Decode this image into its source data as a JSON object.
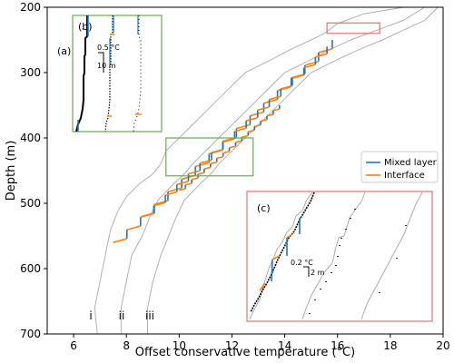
{
  "chart_data": {
    "type": "line",
    "xlabel": "Offset conservative temperature (°C)",
    "ylabel": "Depth (m)",
    "xlim": [
      5,
      20
    ],
    "ylim": [
      700,
      200
    ],
    "xticks": [
      "6",
      "8",
      "10",
      "12",
      "14",
      "16",
      "18",
      "20"
    ],
    "yticks": [
      "200",
      "300",
      "400",
      "500",
      "600",
      "700"
    ],
    "legend": {
      "placement": "right",
      "entries": [
        {
          "name": "Mixed layer",
          "color": "#1f77b4"
        },
        {
          "name": "Interface",
          "color": "#ff7f0e"
        }
      ]
    },
    "profile_labels": [
      "i",
      "ii",
      "iii"
    ],
    "profiles": [
      {
        "label": "i",
        "points": [
          [
            6.9,
            700
          ],
          [
            6.8,
            660
          ],
          [
            7.0,
            620
          ],
          [
            7.2,
            580
          ],
          [
            7.4,
            540
          ],
          [
            7.7,
            510
          ],
          [
            8.0,
            490
          ],
          [
            8.5,
            470
          ],
          [
            9.0,
            455
          ],
          [
            9.3,
            440
          ],
          [
            9.5,
            420
          ],
          [
            10.0,
            400
          ],
          [
            10.5,
            380
          ],
          [
            11.0,
            360
          ],
          [
            11.5,
            340
          ],
          [
            12.0,
            320
          ],
          [
            12.5,
            300
          ],
          [
            13.0,
            290
          ],
          [
            13.5,
            280
          ],
          [
            14.2,
            265
          ],
          [
            15.0,
            250
          ],
          [
            15.5,
            240
          ],
          [
            16.0,
            225
          ],
          [
            17.0,
            210
          ],
          [
            18.5,
            200
          ]
        ]
      },
      {
        "label": "ii",
        "points": [
          [
            7.8,
            700
          ],
          [
            7.8,
            660
          ],
          [
            8.0,
            620
          ],
          [
            8.2,
            580
          ],
          [
            8.6,
            550
          ],
          [
            8.9,
            520
          ],
          [
            9.2,
            495
          ],
          [
            9.8,
            470
          ],
          [
            10.2,
            455
          ],
          [
            10.5,
            440
          ],
          [
            11.0,
            420
          ],
          [
            11.5,
            400
          ],
          [
            12.0,
            380
          ],
          [
            12.5,
            360
          ],
          [
            13.0,
            340
          ],
          [
            13.5,
            320
          ],
          [
            14.0,
            300
          ],
          [
            14.5,
            290
          ],
          [
            15.0,
            280
          ],
          [
            15.7,
            265
          ],
          [
            16.5,
            250
          ],
          [
            17.5,
            235
          ],
          [
            18.5,
            220
          ],
          [
            19.3,
            200
          ]
        ]
      },
      {
        "label": "iii",
        "points": [
          [
            8.8,
            700
          ],
          [
            8.8,
            660
          ],
          [
            9.0,
            620
          ],
          [
            9.3,
            580
          ],
          [
            9.6,
            550
          ],
          [
            9.9,
            520
          ],
          [
            10.2,
            495
          ],
          [
            10.8,
            470
          ],
          [
            11.2,
            455
          ],
          [
            11.5,
            440
          ],
          [
            12.0,
            420
          ],
          [
            12.5,
            400
          ],
          [
            13.0,
            380
          ],
          [
            13.5,
            360
          ],
          [
            14.0,
            340
          ],
          [
            14.5,
            320
          ],
          [
            15.0,
            300
          ],
          [
            15.5,
            290
          ],
          [
            16.0,
            280
          ],
          [
            16.8,
            265
          ],
          [
            17.7,
            250
          ],
          [
            18.5,
            235
          ],
          [
            19.3,
            220
          ],
          [
            19.8,
            200
          ]
        ]
      }
    ],
    "staircase_profiles": [
      {
        "label": "i",
        "top": 250,
        "bottom": 560,
        "x_top": 15.8,
        "x_bottom": 7.5
      },
      {
        "label": "ii",
        "top": 260,
        "bottom": 520,
        "x_top": 15.6,
        "x_bottom": 8.6
      },
      {
        "label": "iii",
        "top": 350,
        "bottom": 480,
        "x_top": 13.8,
        "x_bottom": 10.0
      }
    ],
    "zoom_boxes": [
      {
        "name": "upper",
        "x": [
          15.6,
          17.6
        ],
        "y": [
          224,
          240
        ],
        "color": "#e87070"
      },
      {
        "name": "middle",
        "x": [
          9.5,
          12.8
        ],
        "y": [
          400,
          458
        ],
        "color": "#6aaa50"
      }
    ],
    "insets": [
      {
        "label": "(a)",
        "panel": "(b)",
        "color": "#6aaa50",
        "scale_t": "0.5 °C",
        "scale_z": "10 m"
      },
      {
        "label": "(c)",
        "color": "#e87070",
        "scale_t": "0.2 °C",
        "scale_z": "2 m"
      }
    ],
    "grid": false
  }
}
